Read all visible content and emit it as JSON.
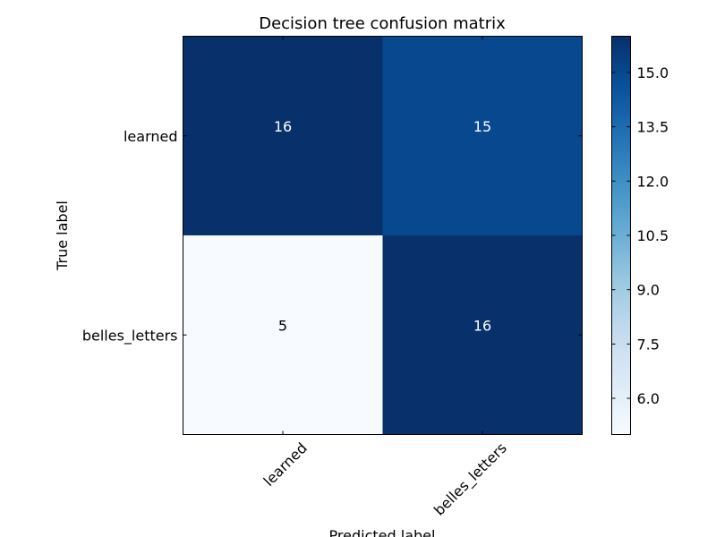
{
  "chart_data": {
    "type": "heatmap",
    "title": "Decision tree confusion matrix",
    "xlabel": "Predicted label",
    "ylabel": "True label",
    "x_categories": [
      "learned",
      "belles_letters"
    ],
    "y_categories": [
      "learned",
      "belles_letters"
    ],
    "values": [
      [
        16,
        15
      ],
      [
        5,
        16
      ]
    ],
    "colormap": "Blues",
    "vmin": 5,
    "vmax": 16,
    "colorbar_ticks": [
      "6.0",
      "7.5",
      "9.0",
      "10.5",
      "12.0",
      "13.5",
      "15.0"
    ]
  }
}
